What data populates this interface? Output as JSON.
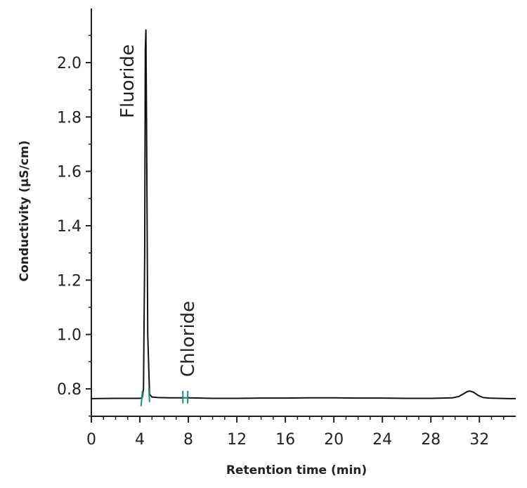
{
  "chart_data": {
    "type": "line",
    "title": "",
    "xlabel": "Retention time (min)",
    "ylabel": "Conductivity (µS/cm)",
    "xlim": [
      0,
      35
    ],
    "ylim": [
      0.7,
      2.2
    ],
    "x_ticks": [
      "0",
      "4",
      "8",
      "12",
      "16",
      "20",
      "24",
      "28",
      "32"
    ],
    "y_ticks": [
      "0.8",
      "1.0",
      "1.2",
      "1.4",
      "1.6",
      "1.8",
      "2.0"
    ],
    "grid": false,
    "series": [
      {
        "color": "#111111",
        "x": [
          0,
          2,
          4.0,
          4.2,
          4.3,
          4.4,
          4.45,
          4.5,
          4.55,
          4.65,
          4.8,
          5.0,
          5.5,
          6.5,
          7.5,
          8.0,
          10,
          12,
          14,
          16,
          18,
          20,
          22,
          24,
          26,
          28,
          29,
          29.8,
          30.3,
          30.7,
          31.0,
          31.2,
          31.5,
          31.9,
          32.3,
          32.8,
          33.5,
          34.5,
          35
        ],
        "y": [
          0.764,
          0.765,
          0.765,
          0.768,
          0.8,
          1.3,
          2.05,
          2.12,
          1.8,
          1.0,
          0.78,
          0.77,
          0.768,
          0.767,
          0.767,
          0.767,
          0.765,
          0.765,
          0.766,
          0.766,
          0.767,
          0.767,
          0.766,
          0.766,
          0.765,
          0.765,
          0.766,
          0.767,
          0.772,
          0.782,
          0.79,
          0.792,
          0.788,
          0.776,
          0.768,
          0.766,
          0.765,
          0.764,
          0.764
        ]
      }
    ],
    "annotations": [
      {
        "text": "Fluoride",
        "x": 4.5,
        "y": 2.12
      },
      {
        "text": "Chloride",
        "x": 7.75,
        "y": 0.77
      }
    ],
    "markers": {
      "color": "#1a8a8a",
      "fluoride_bounds": [
        4.1,
        4.8
      ],
      "chloride_bounds": [
        7.55,
        7.95
      ]
    }
  }
}
